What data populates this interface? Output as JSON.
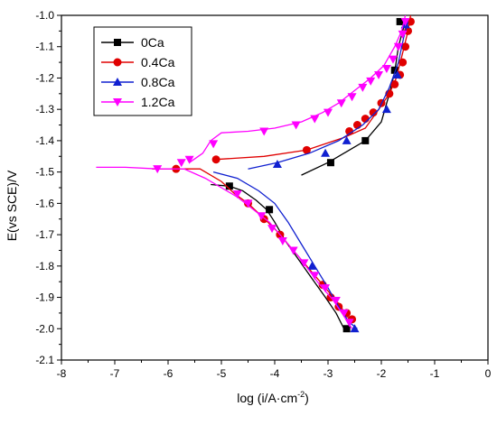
{
  "chart_data": {
    "type": "line",
    "title": "",
    "xlabel": "log (i/A·cm",
    "xlabel_sup": "-2",
    "xlabel_close": ")",
    "ylabel": "E(vs SCE)/V",
    "xlim": [
      -8,
      0
    ],
    "ylim": [
      -2.1,
      -1.0
    ],
    "xticks": [
      -8,
      -7,
      -6,
      -5,
      -4,
      -3,
      -2,
      -1,
      0
    ],
    "yticks": [
      -2.1,
      -2.0,
      -1.9,
      -1.8,
      -1.7,
      -1.6,
      -1.5,
      -1.4,
      -1.3,
      -1.2,
      -1.1,
      -1.0
    ],
    "xtick_labels": [
      "-8",
      "-7",
      "-6",
      "-5",
      "-4",
      "-3",
      "-2",
      "-1",
      "0"
    ],
    "ytick_labels": [
      "-2.1",
      "-2.0",
      "-1.9",
      "-1.8",
      "-1.7",
      "-1.6",
      "-1.5",
      "-1.4",
      "-1.3",
      "-1.2",
      "-1.1",
      "-1.0"
    ],
    "grid": false,
    "legend_position": "top-left",
    "series": [
      {
        "name": "0Ca",
        "color": "#000000",
        "marker": "square",
        "points": [
          [
            -5.2,
            -1.54
          ],
          [
            -4.85,
            -1.545
          ],
          [
            -4.6,
            -1.56
          ],
          [
            -4.35,
            -1.59
          ],
          [
            -4.15,
            -1.62
          ],
          [
            -4.0,
            -1.66
          ],
          [
            -3.8,
            -1.72
          ],
          [
            -3.55,
            -1.78
          ],
          [
            -3.3,
            -1.84
          ],
          [
            -3.05,
            -1.9
          ],
          [
            -2.85,
            -1.95
          ],
          [
            -2.7,
            -2.0
          ],
          [
            -2.7,
            -2.0
          ],
          [
            -3.5,
            -1.51
          ],
          [
            -3.0,
            -1.47
          ],
          [
            -2.6,
            -1.43
          ],
          [
            -2.3,
            -1.4
          ],
          [
            -2.0,
            -1.34
          ],
          [
            -1.85,
            -1.25
          ],
          [
            -1.75,
            -1.18
          ],
          [
            -1.68,
            -1.1
          ],
          [
            -1.6,
            -1.05
          ],
          [
            -1.55,
            -1.02
          ]
        ],
        "markers": [
          [
            -4.85,
            -1.545
          ],
          [
            -4.1,
            -1.62
          ],
          [
            -2.95,
            -1.47
          ],
          [
            -2.3,
            -1.4
          ],
          [
            -1.75,
            -1.175
          ],
          [
            -1.65,
            -1.02
          ],
          [
            -2.65,
            -2.0
          ]
        ]
      },
      {
        "name": "0.4Ca",
        "color": "#e00000",
        "marker": "circle",
        "points": [
          [
            -6.3,
            -1.49
          ],
          [
            -5.85,
            -1.49
          ],
          [
            -5.4,
            -1.49
          ],
          [
            -5.0,
            -1.53
          ],
          [
            -4.75,
            -1.57
          ],
          [
            -4.5,
            -1.6
          ],
          [
            -4.25,
            -1.64
          ],
          [
            -3.95,
            -1.69
          ],
          [
            -3.65,
            -1.75
          ],
          [
            -3.35,
            -1.81
          ],
          [
            -3.05,
            -1.87
          ],
          [
            -2.8,
            -1.92
          ],
          [
            -2.6,
            -1.97
          ],
          [
            -5.1,
            -1.46
          ],
          [
            -4.2,
            -1.45
          ],
          [
            -3.4,
            -1.43
          ],
          [
            -2.7,
            -1.39
          ],
          [
            -2.3,
            -1.36
          ],
          [
            -2.05,
            -1.3
          ],
          [
            -1.85,
            -1.25
          ],
          [
            -1.72,
            -1.2
          ],
          [
            -1.6,
            -1.12
          ],
          [
            -1.5,
            -1.05
          ],
          [
            -1.45,
            -1.0
          ]
        ],
        "markers": [
          [
            -5.85,
            -1.49
          ],
          [
            -5.1,
            -1.46
          ],
          [
            -4.5,
            -1.6
          ],
          [
            -4.2,
            -1.65
          ],
          [
            -3.9,
            -1.7
          ],
          [
            -3.4,
            -1.43
          ],
          [
            -3.1,
            -1.86
          ],
          [
            -2.95,
            -1.9
          ],
          [
            -2.8,
            -1.93
          ],
          [
            -2.65,
            -1.95
          ],
          [
            -2.55,
            -1.97
          ],
          [
            -2.6,
            -1.37
          ],
          [
            -2.45,
            -1.35
          ],
          [
            -2.3,
            -1.33
          ],
          [
            -2.15,
            -1.31
          ],
          [
            -2.0,
            -1.28
          ],
          [
            -1.85,
            -1.25
          ],
          [
            -1.75,
            -1.22
          ],
          [
            -1.65,
            -1.19
          ],
          [
            -1.6,
            -1.15
          ],
          [
            -1.55,
            -1.1
          ],
          [
            -1.5,
            -1.05
          ],
          [
            -1.45,
            -1.02
          ]
        ]
      },
      {
        "name": "0.8Ca",
        "color": "#1020d0",
        "marker": "triangle",
        "points": [
          [
            -5.15,
            -1.5
          ],
          [
            -4.7,
            -1.52
          ],
          [
            -4.3,
            -1.56
          ],
          [
            -4.0,
            -1.6
          ],
          [
            -3.75,
            -1.66
          ],
          [
            -3.5,
            -1.73
          ],
          [
            -3.25,
            -1.8
          ],
          [
            -3.0,
            -1.87
          ],
          [
            -2.8,
            -1.93
          ],
          [
            -2.6,
            -1.98
          ],
          [
            -2.45,
            -2.0
          ],
          [
            -4.5,
            -1.49
          ],
          [
            -3.95,
            -1.47
          ],
          [
            -3.35,
            -1.44
          ],
          [
            -2.8,
            -1.4
          ],
          [
            -2.35,
            -1.35
          ],
          [
            -2.05,
            -1.3
          ],
          [
            -1.85,
            -1.23
          ],
          [
            -1.68,
            -1.15
          ],
          [
            -1.58,
            -1.07
          ],
          [
            -1.5,
            -1.02
          ]
        ],
        "markers": [
          [
            -3.95,
            -1.475
          ],
          [
            -3.05,
            -1.44
          ],
          [
            -2.65,
            -1.4
          ],
          [
            -1.9,
            -1.3
          ],
          [
            -1.7,
            -1.19
          ],
          [
            -2.5,
            -2.0
          ],
          [
            -3.3,
            -1.8
          ],
          [
            -1.55,
            -1.03
          ]
        ]
      },
      {
        "name": "1.2Ca",
        "color": "#ff00ff",
        "marker": "down-triangle",
        "points": [
          [
            -7.35,
            -1.485
          ],
          [
            -6.8,
            -1.485
          ],
          [
            -6.2,
            -1.49
          ],
          [
            -5.7,
            -1.49
          ],
          [
            -5.3,
            -1.52
          ],
          [
            -5.0,
            -1.55
          ],
          [
            -4.7,
            -1.58
          ],
          [
            -4.4,
            -1.62
          ],
          [
            -4.1,
            -1.66
          ],
          [
            -3.8,
            -1.72
          ],
          [
            -3.5,
            -1.78
          ],
          [
            -3.2,
            -1.85
          ],
          [
            -2.9,
            -1.91
          ],
          [
            -2.7,
            -1.96
          ],
          [
            -2.55,
            -2.0
          ],
          [
            -5.6,
            -1.47
          ],
          [
            -5.35,
            -1.44
          ],
          [
            -5.2,
            -1.4
          ],
          [
            -5.0,
            -1.375
          ],
          [
            -4.5,
            -1.37
          ],
          [
            -4.0,
            -1.36
          ],
          [
            -3.5,
            -1.34
          ],
          [
            -3.1,
            -1.31
          ],
          [
            -2.8,
            -1.28
          ],
          [
            -2.5,
            -1.24
          ],
          [
            -2.2,
            -1.2
          ],
          [
            -1.95,
            -1.16
          ],
          [
            -1.75,
            -1.1
          ],
          [
            -1.62,
            -1.05
          ],
          [
            -1.55,
            -1.0
          ]
        ],
        "markers": [
          [
            -6.2,
            -1.49
          ],
          [
            -5.75,
            -1.47
          ],
          [
            -5.6,
            -1.46
          ],
          [
            -5.15,
            -1.41
          ],
          [
            -4.7,
            -1.57
          ],
          [
            -4.5,
            -1.6
          ],
          [
            -4.25,
            -1.64
          ],
          [
            -4.05,
            -1.68
          ],
          [
            -3.85,
            -1.72
          ],
          [
            -3.65,
            -1.75
          ],
          [
            -3.45,
            -1.79
          ],
          [
            -3.25,
            -1.83
          ],
          [
            -3.05,
            -1.87
          ],
          [
            -2.85,
            -1.91
          ],
          [
            -2.7,
            -1.95
          ],
          [
            -2.6,
            -1.98
          ],
          [
            -4.2,
            -1.37
          ],
          [
            -3.6,
            -1.35
          ],
          [
            -3.25,
            -1.33
          ],
          [
            -3.0,
            -1.31
          ],
          [
            -2.75,
            -1.28
          ],
          [
            -2.55,
            -1.26
          ],
          [
            -2.35,
            -1.23
          ],
          [
            -2.2,
            -1.21
          ],
          [
            -2.05,
            -1.19
          ],
          [
            -1.9,
            -1.17
          ],
          [
            -1.78,
            -1.14
          ],
          [
            -1.68,
            -1.1
          ],
          [
            -1.6,
            -1.06
          ],
          [
            -1.55,
            -1.02
          ]
        ]
      }
    ]
  }
}
